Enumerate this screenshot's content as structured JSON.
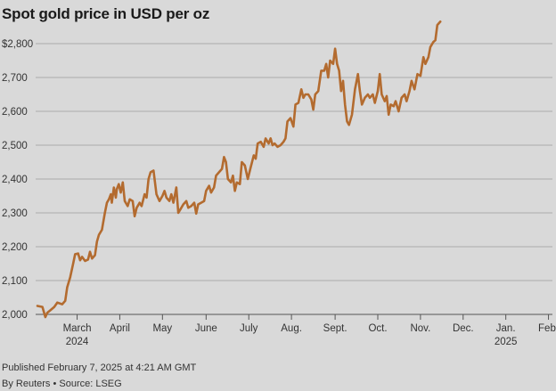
{
  "header": {
    "title": "Spot gold price in USD per oz"
  },
  "footer": {
    "published": "Published February 7, 2025 at 4:21 AM GMT",
    "credit": "By Reuters • Source: LSEG"
  },
  "colors": {
    "line": "#b36b2f",
    "grid": "#9a9a9a",
    "background": "#d9d9d9",
    "text": "#333333"
  },
  "chart_data": {
    "type": "line",
    "title": "Spot gold price in USD per oz",
    "xlabel": "",
    "ylabel": "",
    "ylim": [
      2000,
      2850
    ],
    "xlim": [
      0,
      50
    ],
    "grid": true,
    "y_ticks": [
      {
        "value": 2000,
        "label": "2,000"
      },
      {
        "value": 2100,
        "label": "2,100"
      },
      {
        "value": 2200,
        "label": "2,200"
      },
      {
        "value": 2300,
        "label": "2,300"
      },
      {
        "value": 2400,
        "label": "2,400"
      },
      {
        "value": 2500,
        "label": "2,500"
      },
      {
        "value": 2600,
        "label": "2,600"
      },
      {
        "value": 2700,
        "label": "2,700"
      },
      {
        "value": 2800,
        "label": "$2,800"
      }
    ],
    "x_ticks": [
      {
        "value": 4.0,
        "label": "March",
        "sublabel": "2024"
      },
      {
        "value": 8.3,
        "label": "April",
        "sublabel": ""
      },
      {
        "value": 12.6,
        "label": "May",
        "sublabel": ""
      },
      {
        "value": 17.0,
        "label": "June",
        "sublabel": ""
      },
      {
        "value": 21.3,
        "label": "July",
        "sublabel": ""
      },
      {
        "value": 25.6,
        "label": "Aug.",
        "sublabel": ""
      },
      {
        "value": 30.0,
        "label": "Sept.",
        "sublabel": ""
      },
      {
        "value": 34.3,
        "label": "Oct.",
        "sublabel": ""
      },
      {
        "value": 38.6,
        "label": "Nov.",
        "sublabel": ""
      },
      {
        "value": 42.9,
        "label": "Dec.",
        "sublabel": ""
      },
      {
        "value": 47.2,
        "label": "Jan.",
        "sublabel": "2025"
      },
      {
        "value": 51.5,
        "label": "Feb.",
        "sublabel": ""
      }
    ],
    "series": [
      {
        "name": "Spot gold",
        "points": [
          [
            0.0,
            2025
          ],
          [
            0.5,
            2022
          ],
          [
            0.8,
            1992
          ],
          [
            1.0,
            2005
          ],
          [
            1.3,
            2012
          ],
          [
            1.7,
            2022
          ],
          [
            2.0,
            2035
          ],
          [
            2.5,
            2030
          ],
          [
            2.8,
            2040
          ],
          [
            3.0,
            2080
          ],
          [
            3.3,
            2110
          ],
          [
            3.6,
            2150
          ],
          [
            3.8,
            2178
          ],
          [
            4.1,
            2180
          ],
          [
            4.3,
            2160
          ],
          [
            4.5,
            2170
          ],
          [
            4.8,
            2158
          ],
          [
            5.1,
            2162
          ],
          [
            5.3,
            2185
          ],
          [
            5.5,
            2165
          ],
          [
            5.8,
            2175
          ],
          [
            6.0,
            2215
          ],
          [
            6.2,
            2235
          ],
          [
            6.5,
            2250
          ],
          [
            6.8,
            2300
          ],
          [
            7.0,
            2330
          ],
          [
            7.2,
            2340
          ],
          [
            7.4,
            2355
          ],
          [
            7.5,
            2330
          ],
          [
            7.7,
            2375
          ],
          [
            7.9,
            2345
          ],
          [
            8.0,
            2370
          ],
          [
            8.2,
            2385
          ],
          [
            8.4,
            2360
          ],
          [
            8.6,
            2390
          ],
          [
            8.8,
            2335
          ],
          [
            9.1,
            2320
          ],
          [
            9.3,
            2340
          ],
          [
            9.6,
            2335
          ],
          [
            9.8,
            2290
          ],
          [
            10.0,
            2315
          ],
          [
            10.3,
            2330
          ],
          [
            10.5,
            2320
          ],
          [
            10.8,
            2355
          ],
          [
            11.0,
            2345
          ],
          [
            11.2,
            2400
          ],
          [
            11.4,
            2420
          ],
          [
            11.7,
            2425
          ],
          [
            12.0,
            2355
          ],
          [
            12.3,
            2335
          ],
          [
            12.6,
            2350
          ],
          [
            12.8,
            2365
          ],
          [
            13.0,
            2345
          ],
          [
            13.3,
            2335
          ],
          [
            13.5,
            2355
          ],
          [
            13.7,
            2330
          ],
          [
            14.0,
            2375
          ],
          [
            14.2,
            2300
          ],
          [
            14.4,
            2310
          ],
          [
            14.7,
            2325
          ],
          [
            15.0,
            2335
          ],
          [
            15.2,
            2315
          ],
          [
            15.5,
            2320
          ],
          [
            15.8,
            2330
          ],
          [
            16.0,
            2298
          ],
          [
            16.2,
            2325
          ],
          [
            16.5,
            2330
          ],
          [
            16.8,
            2335
          ],
          [
            17.0,
            2365
          ],
          [
            17.3,
            2380
          ],
          [
            17.5,
            2360
          ],
          [
            17.8,
            2375
          ],
          [
            18.0,
            2410
          ],
          [
            18.3,
            2420
          ],
          [
            18.6,
            2430
          ],
          [
            18.8,
            2465
          ],
          [
            19.0,
            2450
          ],
          [
            19.2,
            2400
          ],
          [
            19.5,
            2390
          ],
          [
            19.7,
            2410
          ],
          [
            19.9,
            2365
          ],
          [
            20.1,
            2390
          ],
          [
            20.4,
            2385
          ],
          [
            20.6,
            2450
          ],
          [
            20.9,
            2440
          ],
          [
            21.2,
            2400
          ],
          [
            21.5,
            2435
          ],
          [
            21.8,
            2470
          ],
          [
            22.0,
            2460
          ],
          [
            22.2,
            2505
          ],
          [
            22.5,
            2510
          ],
          [
            22.8,
            2495
          ],
          [
            23.0,
            2520
          ],
          [
            23.3,
            2505
          ],
          [
            23.5,
            2520
          ],
          [
            23.7,
            2500
          ],
          [
            23.9,
            2505
          ],
          [
            24.2,
            2495
          ],
          [
            24.5,
            2500
          ],
          [
            24.8,
            2510
          ],
          [
            25.0,
            2520
          ],
          [
            25.2,
            2570
          ],
          [
            25.5,
            2580
          ],
          [
            25.8,
            2555
          ],
          [
            26.0,
            2620
          ],
          [
            26.3,
            2625
          ],
          [
            26.6,
            2665
          ],
          [
            26.8,
            2640
          ],
          [
            27.0,
            2650
          ],
          [
            27.3,
            2650
          ],
          [
            27.6,
            2635
          ],
          [
            27.8,
            2605
          ],
          [
            28.0,
            2650
          ],
          [
            28.3,
            2660
          ],
          [
            28.6,
            2720
          ],
          [
            28.9,
            2720
          ],
          [
            29.1,
            2740
          ],
          [
            29.3,
            2700
          ],
          [
            29.5,
            2750
          ],
          [
            29.8,
            2740
          ],
          [
            30.0,
            2785
          ],
          [
            30.2,
            2740
          ],
          [
            30.4,
            2720
          ],
          [
            30.6,
            2660
          ],
          [
            30.8,
            2690
          ],
          [
            31.0,
            2620
          ],
          [
            31.2,
            2570
          ],
          [
            31.4,
            2560
          ],
          [
            31.7,
            2590
          ],
          [
            32.0,
            2665
          ],
          [
            32.3,
            2710
          ],
          [
            32.5,
            2660
          ],
          [
            32.7,
            2620
          ],
          [
            33.0,
            2640
          ],
          [
            33.3,
            2650
          ],
          [
            33.5,
            2640
          ],
          [
            33.8,
            2650
          ],
          [
            34.0,
            2625
          ],
          [
            34.3,
            2660
          ],
          [
            34.5,
            2710
          ],
          [
            34.7,
            2650
          ],
          [
            35.0,
            2630
          ],
          [
            35.2,
            2645
          ],
          [
            35.4,
            2590
          ],
          [
            35.6,
            2620
          ],
          [
            35.9,
            2615
          ],
          [
            36.1,
            2630
          ],
          [
            36.4,
            2600
          ],
          [
            36.7,
            2640
          ],
          [
            37.0,
            2650
          ],
          [
            37.2,
            2630
          ],
          [
            37.5,
            2660
          ],
          [
            37.7,
            2690
          ],
          [
            38.0,
            2665
          ],
          [
            38.3,
            2710
          ],
          [
            38.6,
            2705
          ],
          [
            38.9,
            2760
          ],
          [
            39.1,
            2740
          ],
          [
            39.4,
            2760
          ],
          [
            39.6,
            2790
          ],
          [
            39.9,
            2805
          ],
          [
            40.1,
            2810
          ],
          [
            40.3,
            2855
          ],
          [
            40.6,
            2865
          ]
        ]
      }
    ]
  }
}
